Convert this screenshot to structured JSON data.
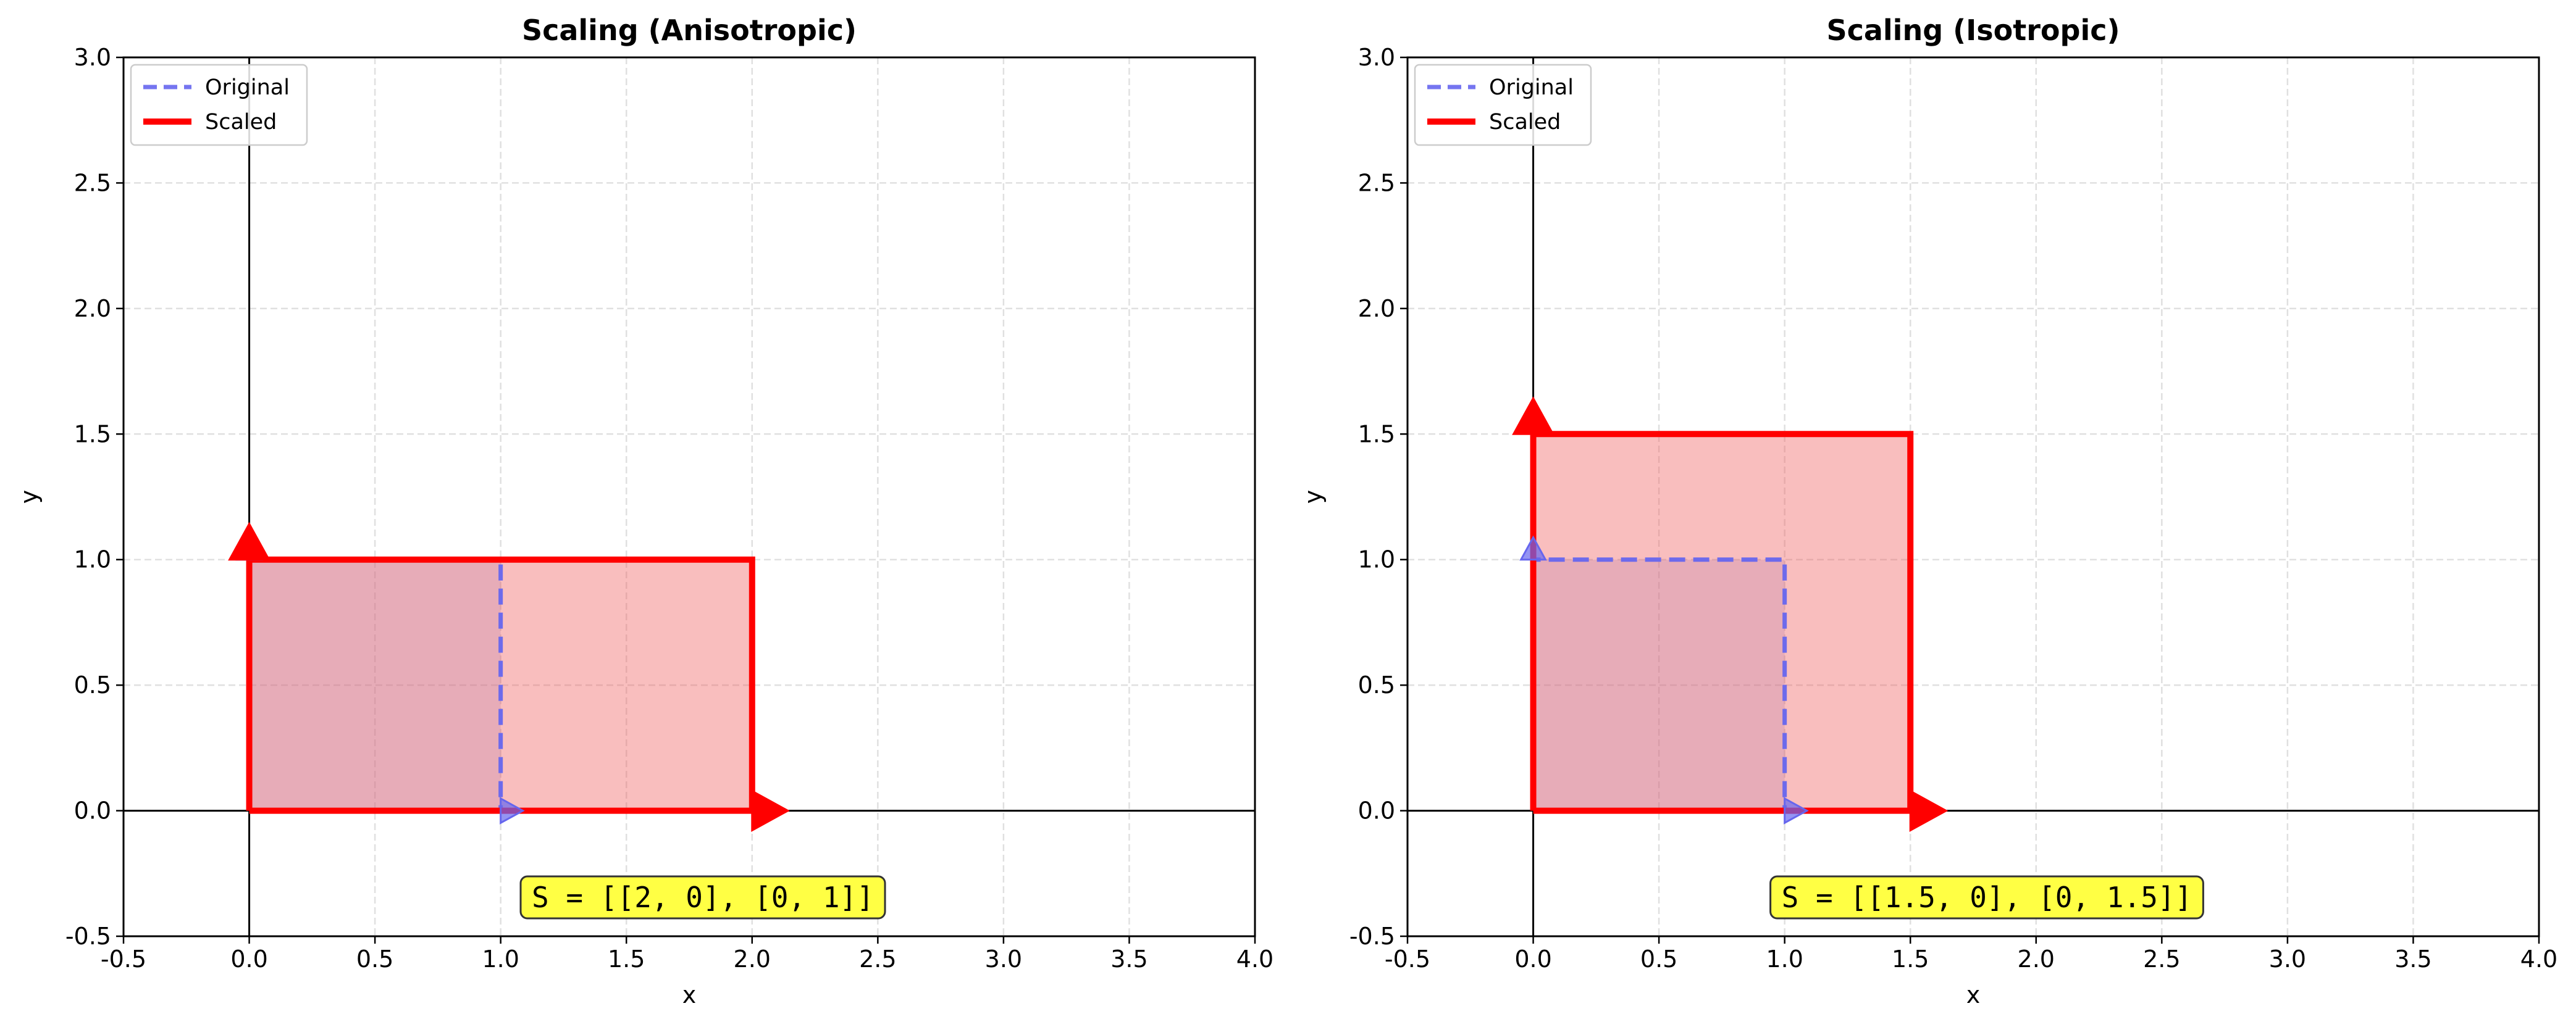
{
  "chart_data": [
    {
      "type": "line",
      "title": "Scaling (Anisotropic)",
      "xlabel": "x",
      "ylabel": "y",
      "xlim": [
        -0.5,
        4.0
      ],
      "ylim": [
        -0.5,
        3.0
      ],
      "xticks": [
        -0.5,
        0.0,
        0.5,
        1.0,
        1.5,
        2.0,
        2.5,
        3.0,
        3.5,
        4.0
      ],
      "yticks": [
        -0.5,
        0.0,
        0.5,
        1.0,
        1.5,
        2.0,
        2.5,
        3.0
      ],
      "xtick_labels": [
        "-0.5",
        "0.0",
        "0.5",
        "1.0",
        "1.5",
        "2.0",
        "2.5",
        "3.0",
        "3.5",
        "4.0"
      ],
      "ytick_labels": [
        "-0.5",
        "0.0",
        "0.5",
        "1.0",
        "1.5",
        "2.0",
        "2.5",
        "3.0"
      ],
      "grid": true,
      "legend_position": "upper-left",
      "series": [
        {
          "name": "Original",
          "style": "dashed",
          "color": "#6666ee",
          "x": [
            0,
            1,
            1,
            0,
            0
          ],
          "y": [
            0,
            0,
            1,
            1,
            0
          ]
        },
        {
          "name": "Scaled",
          "style": "solid",
          "color": "#ff0000",
          "x": [
            0,
            2,
            2,
            0,
            0
          ],
          "y": [
            0,
            0,
            1,
            1,
            0
          ]
        }
      ],
      "basis_vectors": {
        "original": [
          [
            1,
            0
          ],
          [
            0,
            1
          ]
        ],
        "scaled": [
          [
            2,
            0
          ],
          [
            0,
            1
          ]
        ]
      },
      "annotation": "S = [[2, 0], [0, 1]]",
      "annotation_color": "#ffff44"
    },
    {
      "type": "line",
      "title": "Scaling (Isotropic)",
      "xlabel": "x",
      "ylabel": "y",
      "xlim": [
        -0.5,
        4.0
      ],
      "ylim": [
        -0.5,
        3.0
      ],
      "xticks": [
        -0.5,
        0.0,
        0.5,
        1.0,
        1.5,
        2.0,
        2.5,
        3.0,
        3.5,
        4.0
      ],
      "yticks": [
        -0.5,
        0.0,
        0.5,
        1.0,
        1.5,
        2.0,
        2.5,
        3.0
      ],
      "xtick_labels": [
        "-0.5",
        "0.0",
        "0.5",
        "1.0",
        "1.5",
        "2.0",
        "2.5",
        "3.0",
        "3.5",
        "4.0"
      ],
      "ytick_labels": [
        "-0.5",
        "0.0",
        "0.5",
        "1.0",
        "1.5",
        "2.0",
        "2.5",
        "3.0"
      ],
      "grid": true,
      "legend_position": "upper-left",
      "series": [
        {
          "name": "Original",
          "style": "dashed",
          "color": "#6666ee",
          "x": [
            0,
            1,
            1,
            0,
            0
          ],
          "y": [
            0,
            0,
            1,
            1,
            0
          ]
        },
        {
          "name": "Scaled",
          "style": "solid",
          "color": "#ff0000",
          "x": [
            0,
            1.5,
            1.5,
            0,
            0
          ],
          "y": [
            0,
            0,
            1.5,
            1.5,
            0
          ]
        }
      ],
      "basis_vectors": {
        "original": [
          [
            1,
            0
          ],
          [
            0,
            1
          ]
        ],
        "scaled": [
          [
            1.5,
            0
          ],
          [
            0,
            1.5
          ]
        ]
      },
      "annotation": "S = [[1.5, 0], [0, 1.5]]",
      "annotation_color": "#ffff44"
    }
  ]
}
